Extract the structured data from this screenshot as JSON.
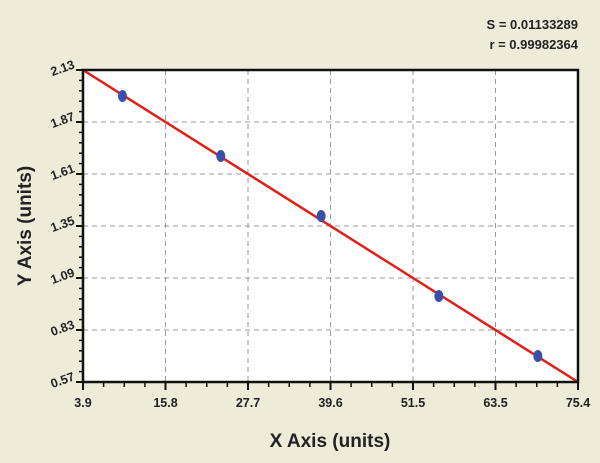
{
  "chart_data": {
    "type": "scatter",
    "title": "",
    "xlabel": "X Axis (units)",
    "ylabel": "Y Axis (units)",
    "xlim": [
      3.9,
      75.4
    ],
    "ylim": [
      0.57,
      2.13
    ],
    "xticks": [
      "3.9",
      "15.8",
      "27.7",
      "39.6",
      "51.5",
      "63.5",
      "75.4"
    ],
    "yticks": [
      "0.57",
      "0.83",
      "1.09",
      "1.35",
      "1.61",
      "1.87",
      "2.13"
    ],
    "grid": true,
    "points": [
      {
        "x": 9.6,
        "y": 2.0
      },
      {
        "x": 23.8,
        "y": 1.7
      },
      {
        "x": 38.3,
        "y": 1.4
      },
      {
        "x": 55.3,
        "y": 1.0
      },
      {
        "x": 69.6,
        "y": 0.7
      }
    ],
    "fit_line": {
      "x": [
        3.9,
        75.4
      ],
      "y": [
        2.13,
        0.57
      ]
    },
    "annotations": {
      "s": "S = 0.01133289",
      "r": "r = 0.99982364"
    },
    "colors": {
      "points": "#3a4fa8",
      "fit_line": "#e0201a",
      "background": "#eeebd9",
      "plot": "#ffffff"
    }
  }
}
